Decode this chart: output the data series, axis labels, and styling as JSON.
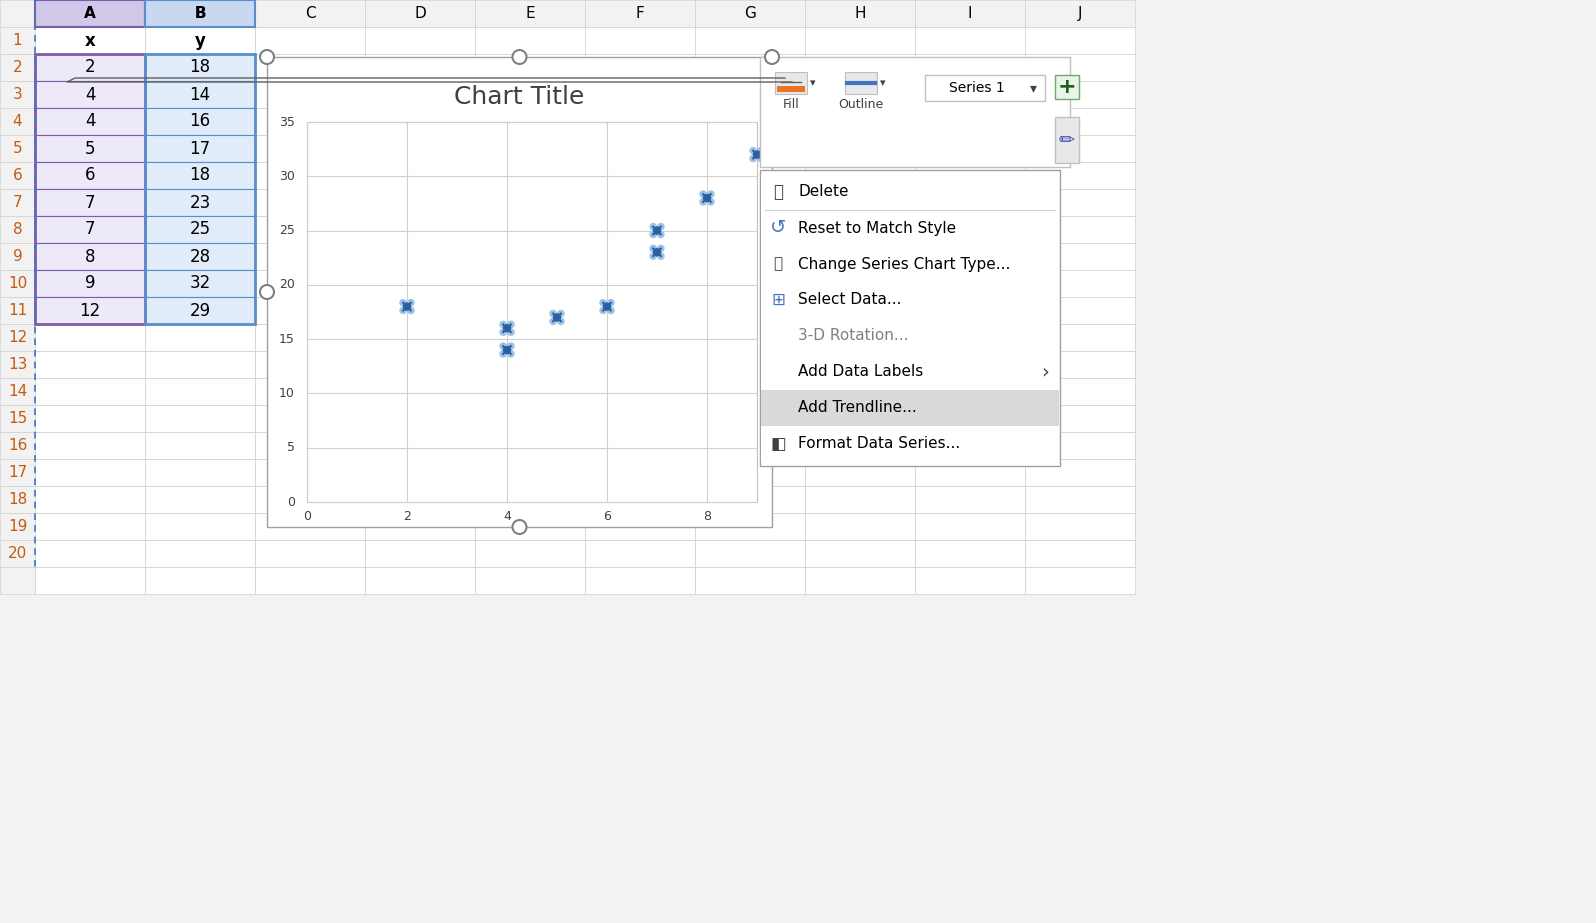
{
  "spreadsheet": {
    "col_a_header": "x",
    "col_b_header": "y",
    "data_x": [
      2,
      4,
      4,
      5,
      6,
      7,
      7,
      8,
      9,
      12
    ],
    "data_y": [
      18,
      14,
      16,
      17,
      18,
      23,
      25,
      28,
      32,
      29
    ],
    "row_numbers": [
      1,
      2,
      3,
      4,
      5,
      6,
      7,
      8,
      9,
      10,
      11,
      12,
      13,
      14,
      15,
      16,
      17,
      18,
      19,
      20
    ],
    "col_letters": [
      "A",
      "B",
      "C",
      "D",
      "E",
      "F",
      "G",
      "H",
      "I",
      "J"
    ]
  },
  "chart": {
    "title": "Chart Title",
    "x_ticks": [
      0,
      2,
      4,
      6,
      8
    ],
    "y_ticks": [
      0,
      5,
      10,
      15,
      20,
      25,
      30,
      35
    ],
    "scatter_color": "#4472C4",
    "scatter_light_color": "#9DC3E6",
    "x_lim": [
      0,
      9.5
    ],
    "y_lim": [
      0,
      37
    ]
  },
  "toolbar": {
    "series_label": "Series 1",
    "fill_label": "Fill",
    "outline_label": "Outline"
  },
  "context_menu": {
    "items": [
      {
        "label": "Delete",
        "icon": true,
        "enabled": true,
        "highlighted": false
      },
      {
        "label": "Reset to Match Style",
        "icon": true,
        "enabled": true,
        "highlighted": false
      },
      {
        "label": "Change Series Chart Type...",
        "icon": true,
        "enabled": true,
        "highlighted": false
      },
      {
        "label": "Select Data...",
        "icon": true,
        "enabled": true,
        "highlighted": false
      },
      {
        "label": "3-D Rotation...",
        "icon": false,
        "enabled": false,
        "highlighted": false
      },
      {
        "label": "Add Data Labels",
        "icon": false,
        "enabled": true,
        "highlighted": false,
        "arrow": true
      },
      {
        "label": "Add Trendline...",
        "icon": false,
        "enabled": true,
        "highlighted": true
      },
      {
        "label": "Format Data Series...",
        "icon": true,
        "enabled": true,
        "highlighted": false
      }
    ],
    "bg_color": "#FFFFFF",
    "highlight_color": "#D9D9D9",
    "border_color": "#C0C0C0",
    "separator_after": [
      0
    ]
  },
  "colors": {
    "excel_bg": "#F2F2F2",
    "spreadsheet_bg": "#FFFFFF",
    "selected_bg": "#E8EAF6",
    "selected_border": "#7B5EA7",
    "grid_line": "#D0D0D0",
    "header_bg": "#F2F2F2",
    "chart_bg": "#FFFFFF",
    "chart_plot_bg": "#FFFFFF",
    "chart_border": "#C0C0C0",
    "row_num_color": "#FF6600",
    "col_letter_color": "#000000"
  }
}
